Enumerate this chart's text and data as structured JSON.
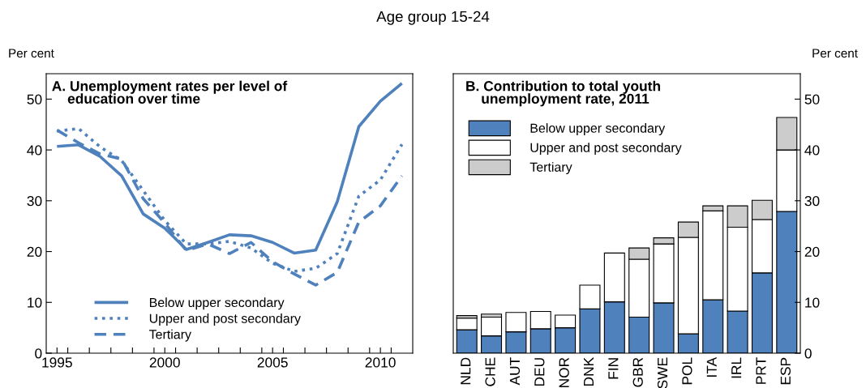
{
  "chart_data": [
    {
      "type": "line",
      "title": "A. Unemployment rates per level of\n    education over time",
      "ylabel": "Per cent",
      "annotations": [
        "Age group 15-24"
      ],
      "x": [
        1995,
        1996,
        1997,
        1998,
        1999,
        2000,
        2001,
        2002,
        2003,
        2004,
        2005,
        2006,
        2007,
        2008,
        2009,
        2010,
        2011
      ],
      "series": [
        {
          "name": "Below upper secondary",
          "color": "#4f81bd",
          "line_style": "solid",
          "values": [
            40.7,
            41.0,
            38.7,
            34.9,
            27.4,
            24.6,
            20.4,
            21.8,
            23.3,
            23.1,
            21.8,
            19.7,
            20.3,
            29.8,
            44.6,
            49.6,
            53.1
          ]
        },
        {
          "name": "Upper and post secondary",
          "color": "#4f81bd",
          "line_style": "dotted",
          "values": [
            43.7,
            44.2,
            40.6,
            37.9,
            32.0,
            26.1,
            21.5,
            21.5,
            22.0,
            20.7,
            17.7,
            16.1,
            16.7,
            19.6,
            30.9,
            34.1,
            41.1
          ]
        },
        {
          "name": "Tertiary",
          "color": "#4f81bd",
          "line_style": "dashed",
          "values": [
            43.9,
            41.4,
            39.2,
            38.2,
            30.4,
            25.6,
            20.2,
            21.5,
            19.6,
            21.8,
            18.0,
            15.6,
            13.4,
            15.9,
            25.8,
            29.0,
            34.9
          ]
        }
      ],
      "xlim": [
        1994.5,
        2011.5
      ],
      "xticks": [
        1995,
        2000,
        2005,
        2010,
        {
          "value": 1995.5,
          "label": null
        },
        {
          "value": 1996.5,
          "label": null
        },
        {
          "value": 1997.5,
          "label": null
        },
        {
          "value": 1998.5,
          "label": null
        },
        {
          "value": 1999.5,
          "label": null
        },
        {
          "value": 2000.5,
          "label": null
        },
        {
          "value": 2001.5,
          "label": null
        },
        {
          "value": 2002.5,
          "label": null
        },
        {
          "value": 2003.5,
          "label": null
        },
        {
          "value": 2004.5,
          "label": null
        },
        {
          "value": 2005.5,
          "label": null
        },
        {
          "value": 2006.5,
          "label": null
        },
        {
          "value": 2007.5,
          "label": null
        },
        {
          "value": 2008.5,
          "label": null
        },
        {
          "value": 2009.5,
          "label": null
        },
        {
          "value": 2010.5,
          "label": null
        }
      ],
      "ylim": [
        0,
        55
      ],
      "yticks": [
        0,
        10,
        20,
        30,
        40,
        50
      ],
      "legend": "bottom left",
      "grid": false
    },
    {
      "type": "bar",
      "stacked": true,
      "title": "B. Contribution to total youth\n    unemployment rate, 2011",
      "ylabel": "Per cent",
      "categories": [
        "NLD",
        "CHE",
        "AUT",
        "DEU",
        "NOR",
        "DNK",
        "FIN",
        "GBR",
        "SWE",
        "POL",
        "ITA",
        "IRL",
        "PRT",
        "ESP"
      ],
      "series": [
        {
          "name": "Below upper secondary",
          "color": "#4f81bd",
          "values": [
            4.6,
            3.4,
            4.2,
            4.8,
            5.0,
            8.7,
            10.1,
            7.1,
            9.9,
            3.8,
            10.5,
            8.3,
            15.8,
            27.9
          ]
        },
        {
          "name": "Upper and post secondary",
          "color": "#ffffff",
          "values": [
            2.3,
            3.7,
            3.8,
            3.4,
            2.5,
            4.7,
            9.6,
            11.4,
            11.6,
            19.0,
            17.5,
            16.5,
            10.5,
            12.1
          ]
        },
        {
          "name": "Tertiary",
          "color": "#cccccc",
          "values": [
            0.5,
            0.6,
            null,
            null,
            null,
            null,
            null,
            2.2,
            1.2,
            3.0,
            1.0,
            4.2,
            3.8,
            6.4
          ]
        }
      ],
      "ylim": [
        0,
        55
      ],
      "yticks": [
        0,
        10,
        20,
        30,
        40,
        50
      ],
      "legend": "top left",
      "grid": false
    }
  ]
}
